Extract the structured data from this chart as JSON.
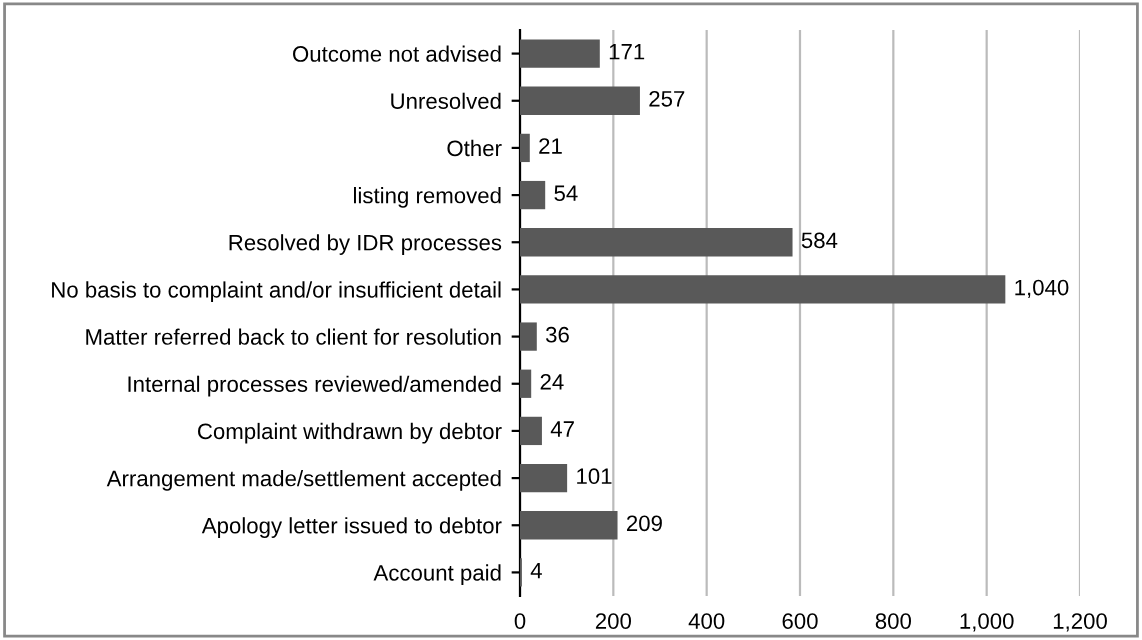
{
  "chart_data": {
    "type": "bar",
    "orientation": "horizontal",
    "categories": [
      "Outcome not advised",
      "Unresolved",
      "Other",
      "listing removed",
      "Resolved by IDR processes",
      "No basis to complaint and/or insufficient detail",
      "Matter referred back to client for resolution",
      "Internal processes reviewed/amended",
      "Complaint withdrawn by debtor",
      "Arrangement made/settlement accepted",
      "Apology letter issued to debtor",
      "Account paid"
    ],
    "values": [
      171,
      257,
      21,
      54,
      584,
      1040,
      36,
      24,
      47,
      101,
      209,
      4
    ],
    "value_labels": [
      "171",
      "257",
      "21",
      "54",
      "584",
      "1,040",
      "36",
      "24",
      "47",
      "101",
      "209",
      "4"
    ],
    "color": "#595959",
    "xlim": [
      0,
      1200
    ],
    "xticks": [
      0,
      200,
      400,
      600,
      800,
      {
        "value": 1000,
        "label": "1,000"
      },
      {
        "value": 1200,
        "label": "1,200"
      }
    ],
    "grid": "x",
    "legend": false
  }
}
